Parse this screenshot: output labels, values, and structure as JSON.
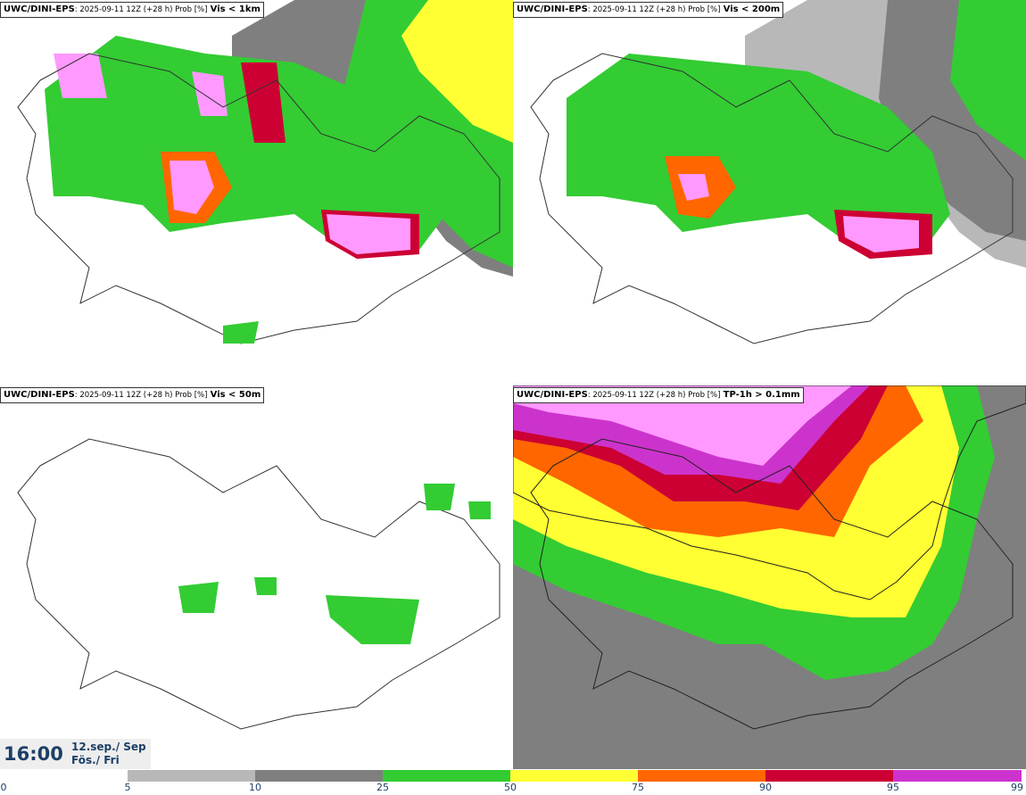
{
  "panels": [
    {
      "model": "UWC/DINI-EPS",
      "meta": ": 2025-09-11 12Z (+28 h) Prob [%]",
      "variable": "Vis < 1km"
    },
    {
      "model": "UWC/DINI-EPS",
      "meta": ": 2025-09-11 12Z (+28 h) Prob [%]",
      "variable": "Vis < 200m"
    },
    {
      "model": "UWC/DINI-EPS",
      "meta": ": 2025-09-11 12Z (+28 h) Prob [%]",
      "variable": "Vis < 50m"
    },
    {
      "model": "UWC/DINI-EPS",
      "meta": ": 2025-09-11 12Z (+28 h) Prob [%]",
      "variable": "TP-1h > 0.1mm"
    }
  ],
  "valid_time": {
    "time": "16:00",
    "date_line1": "12.sep./ Sep",
    "date_line2": "Fös./ Fri"
  },
  "colorbar": {
    "ticks": [
      "0",
      "5",
      "10",
      "25",
      "50",
      "75",
      "90",
      "95",
      "99"
    ],
    "colors": [
      "#ffffff",
      "#b8b8b8",
      "#7f7f7f",
      "#33cc33",
      "#ffff33",
      "#ff6600",
      "#cc0033",
      "#cc33cc",
      "#ff99ff"
    ]
  }
}
